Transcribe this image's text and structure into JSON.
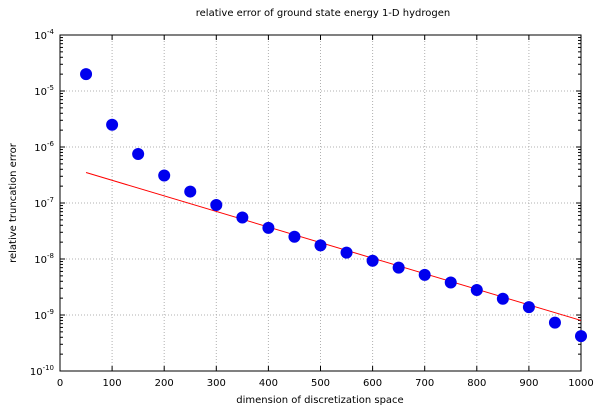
{
  "chart_data": {
    "type": "scatter",
    "title": "relative error of ground state energy 1-D hydrogen",
    "xlabel": "dimension of discretization space",
    "ylabel": "relative truncation error",
    "xlim": [
      0,
      1000
    ],
    "ylim_exponents": [
      -10,
      -4
    ],
    "y_scale": "log",
    "grid": true,
    "x_ticks": [
      "0",
      "100",
      "200",
      "300",
      "400",
      "500",
      "600",
      "700",
      "800",
      "900",
      "1000"
    ],
    "y_ticks": [
      {
        "base": "10",
        "exp": "-10"
      },
      {
        "base": "10",
        "exp": "-9"
      },
      {
        "base": "10",
        "exp": "-8"
      },
      {
        "base": "10",
        "exp": "-7"
      },
      {
        "base": "10",
        "exp": "-6"
      },
      {
        "base": "10",
        "exp": "-5"
      },
      {
        "base": "10",
        "exp": "-4"
      }
    ],
    "series": [
      {
        "kind": "points",
        "color": "#0000ee",
        "points": [
          [
            50,
            2e-05
          ],
          [
            100,
            2.5e-06
          ],
          [
            150,
            7.5e-07
          ],
          [
            200,
            3.1e-07
          ],
          [
            250,
            1.6e-07
          ],
          [
            300,
            9.2e-08
          ],
          [
            350,
            5.5e-08
          ],
          [
            400,
            3.6e-08
          ],
          [
            450,
            2.5e-08
          ],
          [
            500,
            1.75e-08
          ],
          [
            550,
            1.3e-08
          ],
          [
            600,
            9.3e-09
          ],
          [
            650,
            7e-09
          ],
          [
            700,
            5.2e-09
          ],
          [
            750,
            3.8e-09
          ],
          [
            800,
            2.8e-09
          ],
          [
            850,
            1.95e-09
          ],
          [
            900,
            1.38e-09
          ],
          [
            950,
            7.3e-10
          ],
          [
            1000,
            4.2e-10
          ]
        ]
      },
      {
        "kind": "line",
        "color": "#ff0000",
        "points": [
          [
            50,
            3.5e-07
          ],
          [
            1000,
            8e-10
          ]
        ]
      }
    ]
  }
}
